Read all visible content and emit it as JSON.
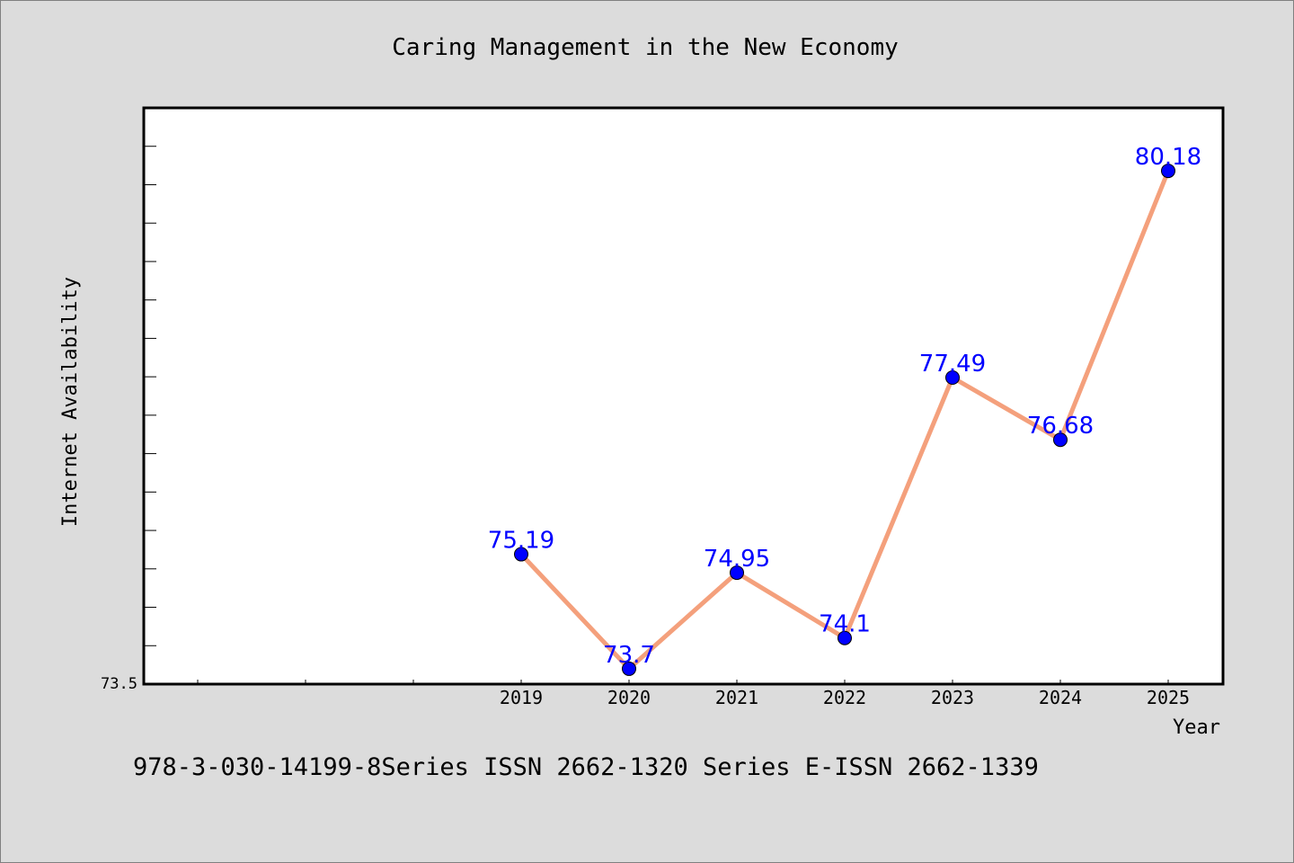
{
  "chart_data": {
    "type": "line",
    "title": "Caring Management in the New Economy",
    "xlabel": "Year",
    "ylabel": "Internet Availability",
    "categories": [
      "2019",
      "2020",
      "2021",
      "2022",
      "2023",
      "2024",
      "2025"
    ],
    "series": [
      {
        "values": [
          75.19,
          73.7,
          74.95,
          74.1,
          77.49,
          76.68,
          80.18
        ]
      }
    ],
    "data_labels": [
      "75.19",
      "73.7",
      "74.95",
      "74.1",
      "77.49",
      "76.68",
      "80.18"
    ],
    "ylim": [
      73.5,
      81.0
    ],
    "y_min_label": "73.5",
    "grid": false,
    "colors": {
      "line": "#f4a07c",
      "marker": "#0000ff",
      "label": "#0000ff",
      "plot_bg": "#ffffff",
      "page_bg": "#dcdcdc"
    }
  },
  "footer_text": "978-3-030-14199-8Series ISSN 2662-1320 Series E-ISSN 2662-1339"
}
